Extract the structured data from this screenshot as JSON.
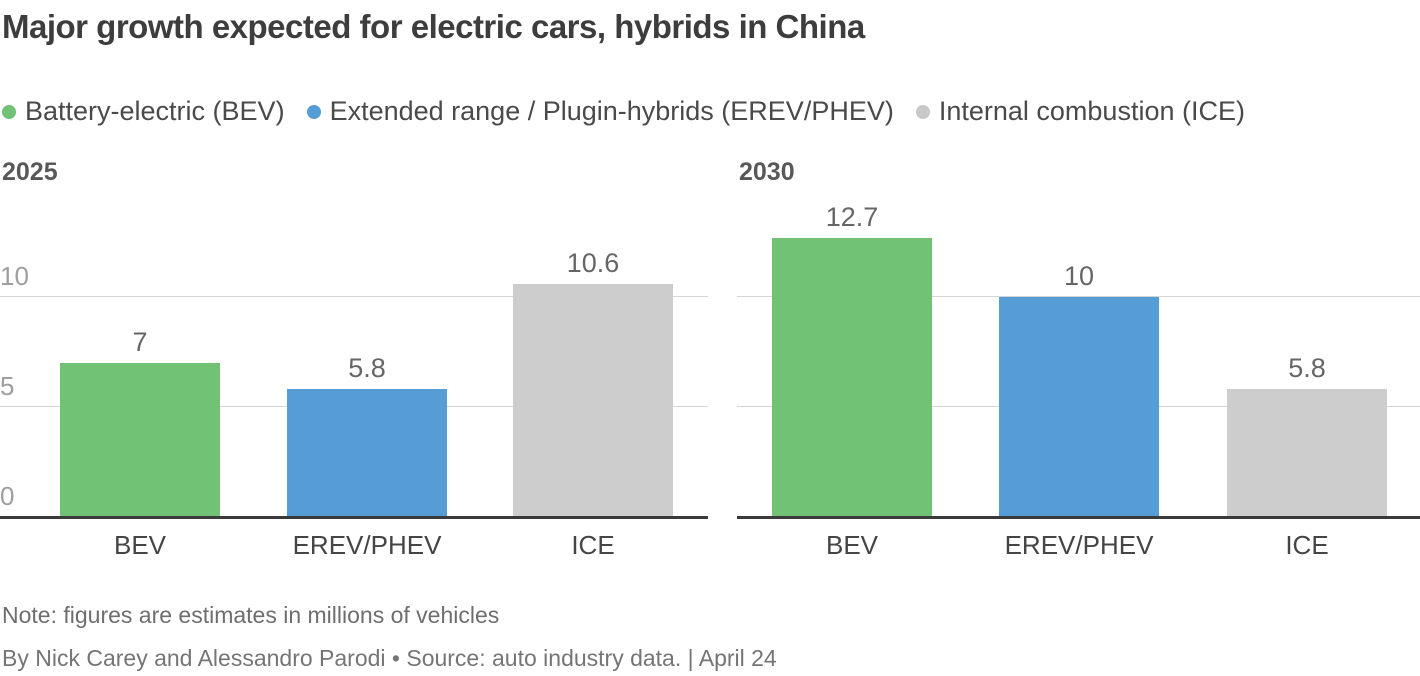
{
  "title": "Major growth expected for electric cars, hybrids in China",
  "legend": {
    "items": [
      {
        "label": "Battery-electric (BEV)",
        "color": "#71c275"
      },
      {
        "label": "Extended range / Plugin-hybrids (EREV/PHEV)",
        "color": "#569dd5"
      },
      {
        "label": "Internal combustion (ICE)",
        "color": "#c8c8c8"
      }
    ]
  },
  "chart_data": [
    {
      "type": "bar",
      "title": "2025",
      "categories": [
        "BEV",
        "EREV/PHEV",
        "ICE"
      ],
      "values": [
        7,
        5.8,
        10.6
      ],
      "value_labels": [
        "7",
        "5.8",
        "10.6"
      ],
      "colors": [
        "#71c275",
        "#569dd5",
        "#cdcdcd"
      ],
      "ylim": [
        0,
        13
      ],
      "yticks": [
        0,
        5,
        10
      ],
      "ytick_labels": [
        "0",
        "5",
        "10"
      ],
      "show_ytick_labels": true,
      "gridline_values": [
        5,
        10
      ],
      "grid": true,
      "legend_position": "top"
    },
    {
      "type": "bar",
      "title": "2030",
      "categories": [
        "BEV",
        "EREV/PHEV",
        "ICE"
      ],
      "values": [
        12.7,
        10,
        5.8
      ],
      "value_labels": [
        "12.7",
        "10",
        "5.8"
      ],
      "colors": [
        "#71c275",
        "#569dd5",
        "#cdcdcd"
      ],
      "ylim": [
        0,
        13
      ],
      "yticks": [
        0,
        5,
        10
      ],
      "ytick_labels": [
        "0",
        "5",
        "10"
      ],
      "show_ytick_labels": false,
      "gridline_values": [
        5,
        10
      ],
      "grid": true,
      "legend_position": "top"
    }
  ],
  "note": "Note: figures are estimates in millions of vehicles",
  "byline": "By Nick Carey and Alessandro Parodi • Source: auto industry data. | April 24"
}
